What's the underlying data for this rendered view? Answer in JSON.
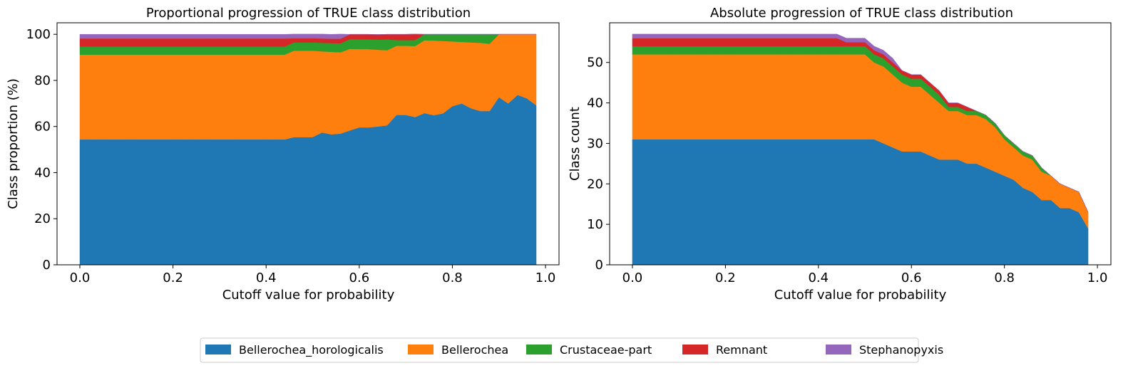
{
  "legend": {
    "location": "bottom-center",
    "entries": [
      {
        "name": "Bellerochea_horologicalis",
        "color": "#1f77b4"
      },
      {
        "name": "Bellerochea",
        "color": "#ff7f0e"
      },
      {
        "name": "Crustaceae-part",
        "color": "#2ca02c"
      },
      {
        "name": "Remnant",
        "color": "#d62728"
      },
      {
        "name": "Stephanopyxis",
        "color": "#9467bd"
      }
    ]
  },
  "chart_data": [
    {
      "type": "area",
      "stacked": true,
      "title": "Proportional progression of TRUE class distribution",
      "xlabel": "Cutoff value for probability",
      "ylabel": "Class proportion (%)",
      "xlim": [
        -0.049,
        1.029
      ],
      "ylim": [
        0,
        105
      ],
      "xticks": [
        0.0,
        0.2,
        0.4,
        0.6,
        0.8,
        1.0
      ],
      "xtick_labels": [
        "0.0",
        "0.2",
        "0.4",
        "0.6",
        "0.8",
        "1.0"
      ],
      "yticks": [
        0,
        20,
        40,
        60,
        80,
        100
      ],
      "ytick_labels": [
        "0",
        "20",
        "40",
        "60",
        "80",
        "100"
      ],
      "grid": false,
      "x": [
        0.0,
        0.02,
        0.04,
        0.06,
        0.08,
        0.1,
        0.12,
        0.14,
        0.16,
        0.18,
        0.2,
        0.22,
        0.24,
        0.26,
        0.28,
        0.3,
        0.32,
        0.34,
        0.36,
        0.38,
        0.4,
        0.42,
        0.44,
        0.46,
        0.48,
        0.5,
        0.52,
        0.54,
        0.56,
        0.58,
        0.6,
        0.62,
        0.64,
        0.66,
        0.68,
        0.7,
        0.72,
        0.74,
        0.76,
        0.78,
        0.8,
        0.82,
        0.84,
        0.86,
        0.88,
        0.9,
        0.92,
        0.94,
        0.96,
        0.98
      ],
      "series": [
        {
          "name": "Bellerochea_horologicalis",
          "color": "#1f77b4",
          "values": [
            54.4,
            54.4,
            54.4,
            54.4,
            54.4,
            54.4,
            54.4,
            54.4,
            54.4,
            54.4,
            54.4,
            54.4,
            54.4,
            54.4,
            54.4,
            54.4,
            54.4,
            54.4,
            54.4,
            54.4,
            54.4,
            54.4,
            54.4,
            55.4,
            55.4,
            55.4,
            57.4,
            56.6,
            56.9,
            58.3,
            59.6,
            59.6,
            60.0,
            60.5,
            65.0,
            65.0,
            64.1,
            65.8,
            64.9,
            65.7,
            68.8,
            70.0,
            67.9,
            66.7,
            66.7,
            72.7,
            70.0,
            73.7,
            72.2,
            69.2
          ]
        },
        {
          "name": "Bellerochea",
          "color": "#ff7f0e",
          "values": [
            36.8,
            36.8,
            36.8,
            36.8,
            36.8,
            36.8,
            36.8,
            36.8,
            36.8,
            36.8,
            36.8,
            36.8,
            36.8,
            36.8,
            36.8,
            36.8,
            36.8,
            36.8,
            36.8,
            36.8,
            36.8,
            36.8,
            36.8,
            37.5,
            37.5,
            37.5,
            35.2,
            35.8,
            35.3,
            35.4,
            34.0,
            34.0,
            33.3,
            32.6,
            30.0,
            30.0,
            30.8,
            31.6,
            32.4,
            31.4,
            28.1,
            26.7,
            28.6,
            29.6,
            29.2,
            27.3,
            30.0,
            26.3,
            27.8,
            30.8
          ]
        },
        {
          "name": "Crustaceae-part",
          "color": "#2ca02c",
          "values": [
            3.5,
            3.5,
            3.5,
            3.5,
            3.5,
            3.5,
            3.5,
            3.5,
            3.5,
            3.5,
            3.5,
            3.5,
            3.5,
            3.5,
            3.5,
            3.5,
            3.5,
            3.5,
            3.5,
            3.5,
            3.5,
            3.5,
            3.5,
            3.6,
            3.6,
            3.6,
            3.7,
            3.8,
            3.9,
            4.2,
            4.3,
            4.3,
            4.4,
            4.7,
            2.5,
            2.5,
            2.6,
            2.6,
            2.7,
            2.9,
            3.1,
            3.3,
            3.5,
            3.7,
            4.1,
            0.0,
            0.0,
            0.0,
            0.0,
            0.0
          ]
        },
        {
          "name": "Remnant",
          "color": "#d62728",
          "values": [
            3.5,
            3.5,
            3.5,
            3.5,
            3.5,
            3.5,
            3.5,
            3.5,
            3.5,
            3.5,
            3.5,
            3.5,
            3.5,
            3.5,
            3.5,
            3.5,
            3.5,
            3.5,
            3.5,
            3.5,
            3.5,
            3.5,
            3.5,
            1.8,
            1.8,
            1.8,
            1.9,
            1.9,
            2.0,
            2.1,
            2.1,
            2.1,
            2.2,
            2.2,
            2.5,
            2.5,
            2.6,
            0.0,
            0.0,
            0.0,
            0.0,
            0.0,
            0.0,
            0.0,
            0.0,
            0.0,
            0.0,
            0.0,
            0.0,
            0.0
          ]
        },
        {
          "name": "Stephanopyxis",
          "color": "#9467bd",
          "values": [
            1.8,
            1.8,
            1.8,
            1.8,
            1.8,
            1.8,
            1.8,
            1.8,
            1.8,
            1.8,
            1.8,
            1.8,
            1.8,
            1.8,
            1.8,
            1.8,
            1.8,
            1.8,
            1.8,
            1.8,
            1.8,
            1.8,
            1.8,
            1.8,
            1.8,
            1.8,
            1.9,
            1.9,
            2.0,
            0.0,
            0.0,
            0.0,
            0.0,
            0.0,
            0.0,
            0.0,
            0.0,
            0.0,
            0.0,
            0.0,
            0.0,
            0.0,
            0.0,
            0.0,
            0.0,
            0.0,
            0.0,
            0.0,
            0.0,
            0.0
          ]
        }
      ]
    },
    {
      "type": "area",
      "stacked": true,
      "title": "Absolute progression of TRUE class distribution",
      "xlabel": "Cutoff value for probability",
      "ylabel": "Class count",
      "xlim": [
        -0.049,
        1.029
      ],
      "ylim": [
        0,
        59.8
      ],
      "xticks": [
        0.0,
        0.2,
        0.4,
        0.6,
        0.8,
        1.0
      ],
      "xtick_labels": [
        "0.0",
        "0.2",
        "0.4",
        "0.6",
        "0.8",
        "1.0"
      ],
      "yticks": [
        0,
        10,
        20,
        30,
        40,
        50
      ],
      "ytick_labels": [
        "0",
        "10",
        "20",
        "30",
        "40",
        "50"
      ],
      "grid": false,
      "x": [
        0.0,
        0.02,
        0.04,
        0.06,
        0.08,
        0.1,
        0.12,
        0.14,
        0.16,
        0.18,
        0.2,
        0.22,
        0.24,
        0.26,
        0.28,
        0.3,
        0.32,
        0.34,
        0.36,
        0.38,
        0.4,
        0.42,
        0.44,
        0.46,
        0.48,
        0.5,
        0.52,
        0.54,
        0.56,
        0.58,
        0.6,
        0.62,
        0.64,
        0.66,
        0.68,
        0.7,
        0.72,
        0.74,
        0.76,
        0.78,
        0.8,
        0.82,
        0.84,
        0.86,
        0.88,
        0.9,
        0.92,
        0.94,
        0.96,
        0.98
      ],
      "series": [
        {
          "name": "Bellerochea_horologicalis",
          "color": "#1f77b4",
          "values": [
            31,
            31,
            31,
            31,
            31,
            31,
            31,
            31,
            31,
            31,
            31,
            31,
            31,
            31,
            31,
            31,
            31,
            31,
            31,
            31,
            31,
            31,
            31,
            31,
            31,
            31,
            31,
            30,
            29,
            28,
            28,
            28,
            27,
            26,
            26,
            26,
            25,
            25,
            24,
            23,
            22,
            21,
            19,
            18,
            16,
            16,
            14,
            14,
            13,
            9
          ]
        },
        {
          "name": "Bellerochea",
          "color": "#ff7f0e",
          "values": [
            21,
            21,
            21,
            21,
            21,
            21,
            21,
            21,
            21,
            21,
            21,
            21,
            21,
            21,
            21,
            21,
            21,
            21,
            21,
            21,
            21,
            21,
            21,
            21,
            21,
            21,
            19,
            19,
            18,
            17,
            16,
            16,
            15,
            14,
            12,
            12,
            12,
            12,
            12,
            11,
            9,
            8,
            8,
            8,
            7,
            6,
            6,
            5,
            5,
            4
          ]
        },
        {
          "name": "Crustaceae-part",
          "color": "#2ca02c",
          "values": [
            2,
            2,
            2,
            2,
            2,
            2,
            2,
            2,
            2,
            2,
            2,
            2,
            2,
            2,
            2,
            2,
            2,
            2,
            2,
            2,
            2,
            2,
            2,
            2,
            2,
            2,
            2,
            2,
            2,
            2,
            2,
            2,
            2,
            2,
            1,
            1,
            1,
            1,
            1,
            1,
            1,
            1,
            1,
            1,
            1,
            0,
            0,
            0,
            0,
            0
          ]
        },
        {
          "name": "Remnant",
          "color": "#d62728",
          "values": [
            2,
            2,
            2,
            2,
            2,
            2,
            2,
            2,
            2,
            2,
            2,
            2,
            2,
            2,
            2,
            2,
            2,
            2,
            2,
            2,
            2,
            2,
            2,
            1,
            1,
            1,
            1,
            1,
            1,
            1,
            1,
            1,
            1,
            1,
            1,
            1,
            1,
            0,
            0,
            0,
            0,
            0,
            0,
            0,
            0,
            0,
            0,
            0,
            0,
            0
          ]
        },
        {
          "name": "Stephanopyxis",
          "color": "#9467bd",
          "values": [
            1,
            1,
            1,
            1,
            1,
            1,
            1,
            1,
            1,
            1,
            1,
            1,
            1,
            1,
            1,
            1,
            1,
            1,
            1,
            1,
            1,
            1,
            1,
            1,
            1,
            1,
            1,
            1,
            1,
            0,
            0,
            0,
            0,
            0,
            0,
            0,
            0,
            0,
            0,
            0,
            0,
            0,
            0,
            0,
            0,
            0,
            0,
            0,
            0,
            0
          ]
        }
      ]
    }
  ]
}
